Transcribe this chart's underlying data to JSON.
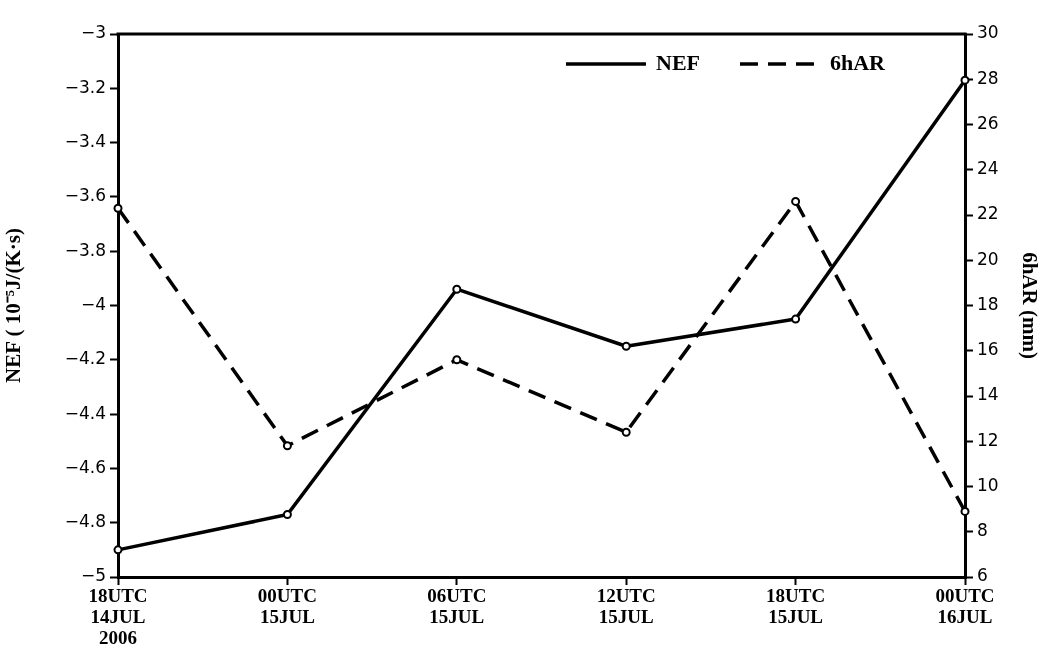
{
  "chart_data": {
    "type": "line",
    "categories": [
      "18UTC\n14JUL\n2006",
      "00UTC\n15JUL",
      "06UTC\n15JUL",
      "12UTC\n15JUL",
      "18UTC\n15JUL",
      "00UTC\n16JUL"
    ],
    "series": [
      {
        "name": "NEF",
        "color": "#000000",
        "line_style": "solid",
        "values": [
          -4.9,
          -4.77,
          -3.94,
          -4.15,
          -4.05,
          -3.17
        ]
      },
      {
        "name": "6hAR",
        "color": "#000000",
        "line_style": "dashed",
        "axis": "y2",
        "values": [
          22.3,
          11.8,
          15.6,
          12.4,
          22.6,
          8.9
        ]
      }
    ],
    "ylabel": "NEF ( 10⁻⁵J/(K·s)",
    "y2label": "6hAR (mm)",
    "ylim": [
      -5,
      -3
    ],
    "yticks": [
      -5,
      -4.8,
      -4.6,
      -4.4,
      -4.2,
      -4,
      -3.8,
      -3.6,
      -3.4,
      -3.2,
      -3
    ],
    "y2lim": [
      6,
      30
    ],
    "y2ticks": [
      6,
      8,
      10,
      12,
      14,
      16,
      18,
      20,
      22,
      24,
      26,
      28,
      30
    ],
    "grid": false,
    "legend": "top right",
    "marker": "circle"
  }
}
